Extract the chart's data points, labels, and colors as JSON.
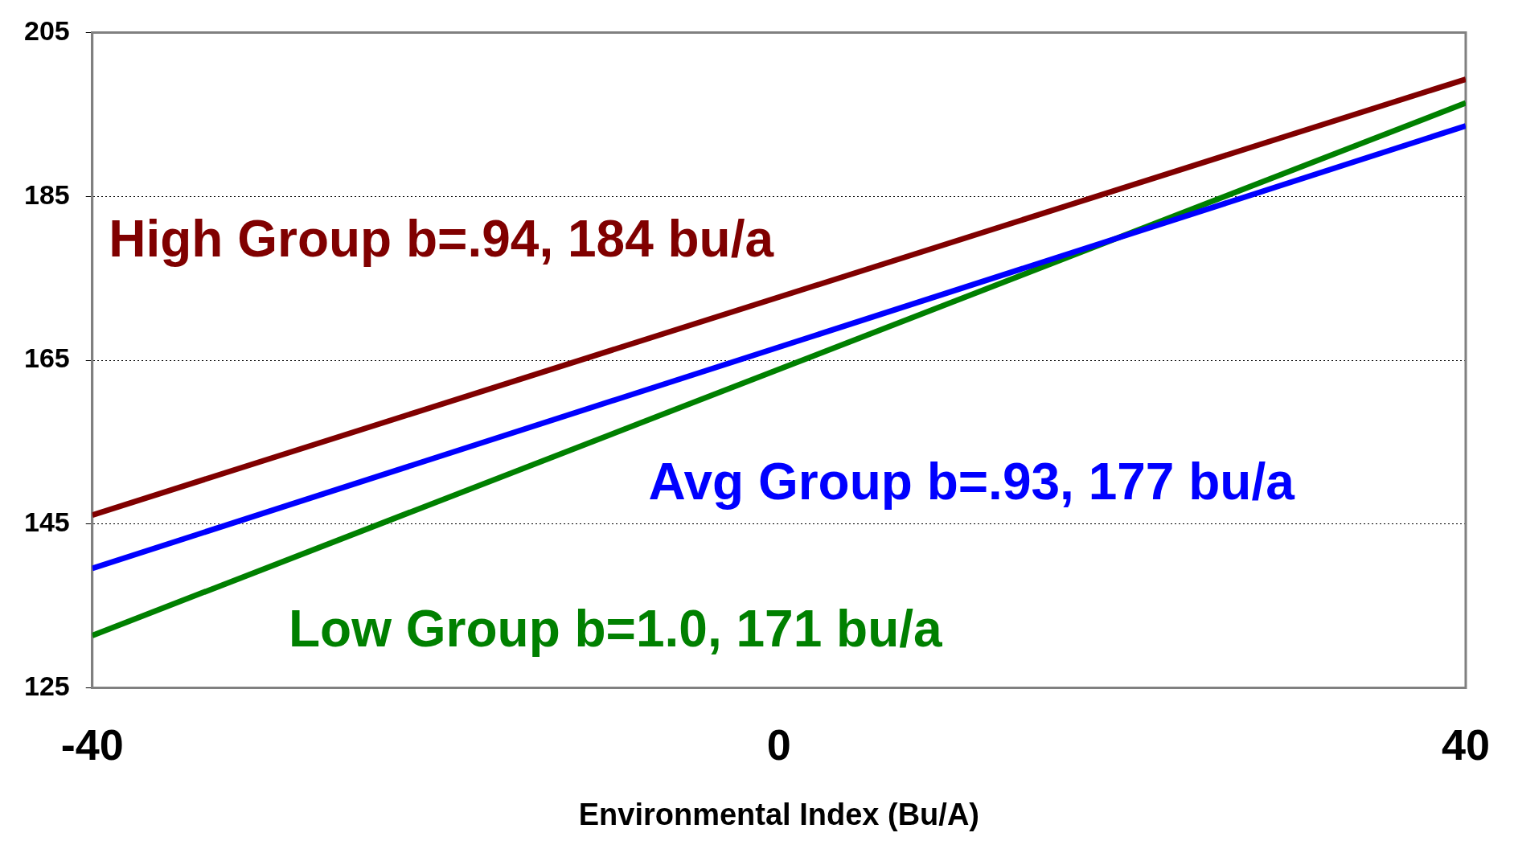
{
  "chart_data": {
    "type": "line",
    "xlabel": "Environmental Index (Bu/A)",
    "x": [
      -40,
      40
    ],
    "series": [
      {
        "name": "High Group b=.94, 184 bu/a",
        "color": "#800000",
        "values": [
          146.1,
          199.3
        ]
      },
      {
        "name": "Avg Group b=.93, 177 bu/a",
        "color": "#0000ff",
        "values": [
          139.6,
          193.6
        ]
      },
      {
        "name": "Low Group b=1.0, 171 bu/a",
        "color": "#008000",
        "values": [
          131.4,
          196.4
        ]
      }
    ],
    "xlim": [
      -40,
      40
    ],
    "xticks": [
      -40,
      0,
      40
    ],
    "ylim": [
      125,
      205
    ],
    "yticks": [
      125,
      145,
      165,
      185,
      205
    ],
    "grid": "y",
    "legend": false,
    "marker": "none",
    "line_style": "solid"
  }
}
